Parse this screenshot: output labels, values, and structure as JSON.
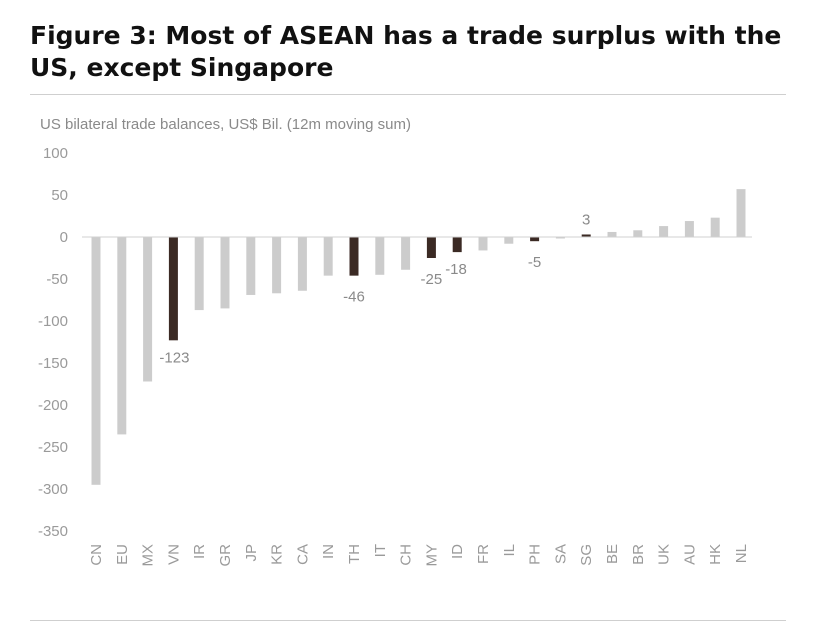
{
  "header": {
    "title": "Figure 3: Most of ASEAN has a trade surplus with the US, except Singapore"
  },
  "colors": {
    "bar_default": "#cccccc",
    "bar_highlight": "#3b2a24",
    "zero_line": "#d0d0d0",
    "label_text": "#9a9a9a"
  },
  "chart_data": {
    "type": "bar",
    "title": "Figure 3: Most of ASEAN has a trade surplus with the US, except Singapore",
    "ylabel": "US bilateral trade balances, US$ Bil. (12m moving sum)",
    "xlabel": "",
    "ylim": [
      -350,
      100
    ],
    "yticks": [
      100,
      50,
      0,
      -50,
      -100,
      -150,
      -200,
      -250,
      -300,
      -350
    ],
    "grid": false,
    "categories": [
      "CN",
      "EU",
      "MX",
      "VN",
      "IR",
      "GR",
      "JP",
      "KR",
      "CA",
      "IN",
      "TH",
      "IT",
      "CH",
      "MY",
      "ID",
      "FR",
      "IL",
      "PH",
      "SA",
      "SG",
      "BE",
      "BR",
      "UK",
      "AU",
      "HK",
      "NL"
    ],
    "values": [
      -295,
      -235,
      -172,
      -123,
      -87,
      -85,
      -69,
      -67,
      -64,
      -46,
      -46,
      -45,
      -39,
      -25,
      -18,
      -16,
      -8,
      -5,
      -1,
      3,
      6,
      8,
      13,
      19,
      23,
      57
    ],
    "highlighted": [
      "VN",
      "TH",
      "MY",
      "ID",
      "PH",
      "SG"
    ],
    "data_labels": [
      {
        "category": "VN",
        "text": "-123"
      },
      {
        "category": "TH",
        "text": "-46"
      },
      {
        "category": "MY",
        "text": "-25"
      },
      {
        "category": "ID",
        "text": "-18"
      },
      {
        "category": "PH",
        "text": "-5"
      },
      {
        "category": "SG",
        "text": "3"
      }
    ]
  }
}
